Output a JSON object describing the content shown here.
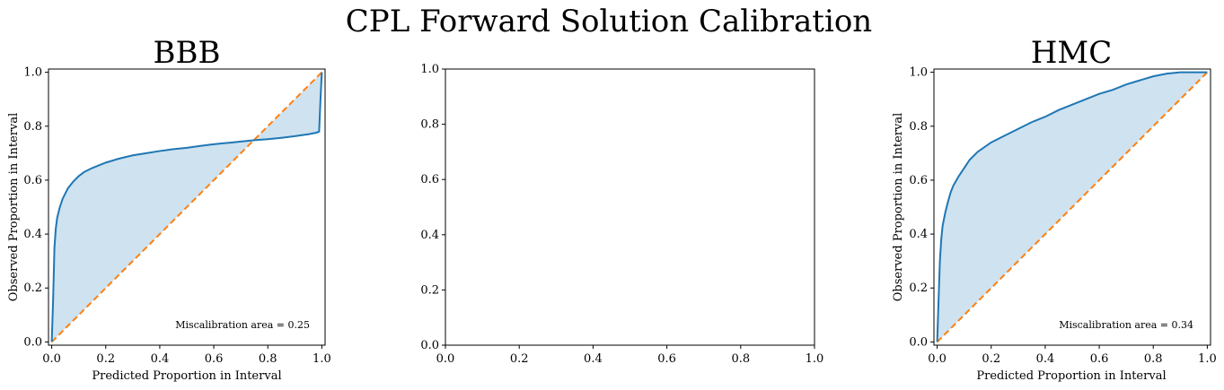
{
  "figure": {
    "title": "CPL Forward Solution Calibration"
  },
  "colors": {
    "curve": "#1f77b4",
    "fill": "#cfe2f0",
    "ideal": "#ff7f0e",
    "axis": "#000000"
  },
  "chart_data": [
    {
      "type": "line",
      "title": "BBB",
      "xlabel": "Predicted Proportion in Interval",
      "ylabel": "Observed Proportion in Interval",
      "xlim": [
        0,
        1
      ],
      "ylim": [
        0,
        1
      ],
      "xticks": [
        "0.0",
        "0.2",
        "0.4",
        "0.6",
        "0.8",
        "1.0"
      ],
      "yticks": [
        "0.0",
        "0.2",
        "0.4",
        "0.6",
        "0.8",
        "1.0"
      ],
      "annotation": "Miscalibration area = 0.25",
      "series": [
        {
          "x": [
            0.0,
            0.005,
            0.01,
            0.015,
            0.02,
            0.03,
            0.04,
            0.05,
            0.06,
            0.08,
            0.1,
            0.12,
            0.15,
            0.2,
            0.25,
            0.3,
            0.35,
            0.4,
            0.45,
            0.5,
            0.55,
            0.6,
            0.65,
            0.7,
            0.75,
            0.8,
            0.85,
            0.9,
            0.95,
            0.98,
            0.99,
            0.995,
            1.0
          ],
          "y": [
            0.0,
            0.15,
            0.35,
            0.42,
            0.46,
            0.5,
            0.53,
            0.55,
            0.57,
            0.595,
            0.615,
            0.63,
            0.645,
            0.665,
            0.68,
            0.692,
            0.7,
            0.708,
            0.715,
            0.72,
            0.727,
            0.733,
            0.738,
            0.743,
            0.748,
            0.752,
            0.757,
            0.763,
            0.77,
            0.776,
            0.78,
            0.9,
            1.0
          ]
        },
        {
          "x": [
            0,
            1
          ],
          "y": [
            0,
            1
          ]
        }
      ]
    },
    {
      "type": "line",
      "title": "",
      "xlabel": "",
      "ylabel": "",
      "xlim": [
        0,
        1
      ],
      "ylim": [
        0,
        1
      ],
      "xticks": [
        "0.0",
        "0.2",
        "0.4",
        "0.6",
        "0.8",
        "1.0"
      ],
      "yticks": [
        "0.0",
        "0.2",
        "0.4",
        "0.6",
        "0.8",
        "1.0"
      ],
      "annotation": "",
      "series": []
    },
    {
      "type": "line",
      "title": "HMC",
      "xlabel": "Predicted Proportion in Interval",
      "ylabel": "Observed Proportion in Interval",
      "xlim": [
        0,
        1
      ],
      "ylim": [
        0,
        1
      ],
      "xticks": [
        "0.0",
        "0.2",
        "0.4",
        "0.6",
        "0.8",
        "1.0"
      ],
      "yticks": [
        "0.0",
        "0.2",
        "0.4",
        "0.6",
        "0.8",
        "1.0"
      ],
      "annotation": "Miscalibration area = 0.34",
      "series": [
        {
          "x": [
            0.0,
            0.005,
            0.01,
            0.015,
            0.02,
            0.03,
            0.04,
            0.05,
            0.06,
            0.08,
            0.1,
            0.12,
            0.15,
            0.2,
            0.25,
            0.3,
            0.35,
            0.4,
            0.45,
            0.5,
            0.55,
            0.6,
            0.65,
            0.7,
            0.75,
            0.8,
            0.85,
            0.9,
            0.95,
            1.0
          ],
          "y": [
            0.0,
            0.15,
            0.3,
            0.38,
            0.43,
            0.48,
            0.52,
            0.555,
            0.58,
            0.615,
            0.645,
            0.675,
            0.705,
            0.74,
            0.765,
            0.79,
            0.815,
            0.835,
            0.86,
            0.88,
            0.9,
            0.92,
            0.935,
            0.955,
            0.97,
            0.985,
            0.995,
            1.0,
            1.0,
            1.0
          ]
        },
        {
          "x": [
            0,
            1
          ],
          "y": [
            0,
            1
          ]
        }
      ]
    }
  ]
}
